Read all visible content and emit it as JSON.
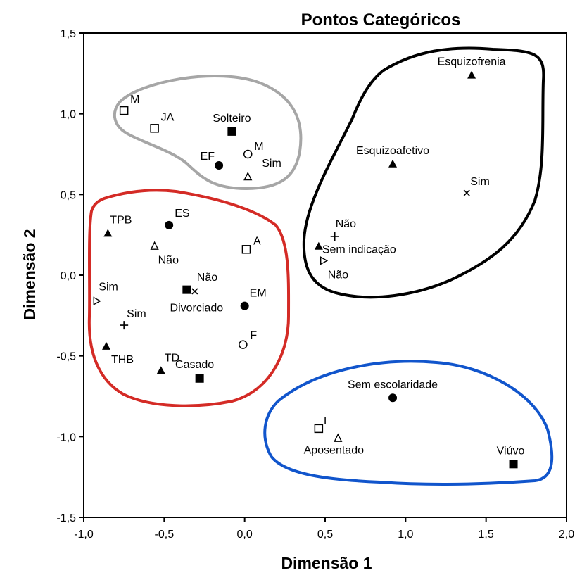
{
  "chart_data": {
    "type": "scatter",
    "title": "Pontos Categóricos",
    "xlabel": "Dimensão 1",
    "ylabel": "Dimensão 2",
    "xlim": [
      -1.0,
      2.0
    ],
    "ylim": [
      -1.5,
      1.5
    ],
    "x_ticks": [
      {
        "value": -1.0,
        "label": "-1,0"
      },
      {
        "value": -0.5,
        "label": "-0,5"
      },
      {
        "value": 0.0,
        "label": "0,0"
      },
      {
        "value": 0.5,
        "label": "0,5"
      },
      {
        "value": 1.0,
        "label": "1,0"
      },
      {
        "value": 1.5,
        "label": "1,5"
      },
      {
        "value": 2.0,
        "label": "2,0"
      }
    ],
    "y_ticks": [
      {
        "value": 1.5,
        "label": "1,5"
      },
      {
        "value": 1.0,
        "label": "1,0"
      },
      {
        "value": 0.5,
        "label": "0,5"
      },
      {
        "value": 0.0,
        "label": "0,0"
      },
      {
        "value": -0.5,
        "label": "-0,5"
      },
      {
        "value": -1.0,
        "label": "-1,0"
      },
      {
        "value": -1.5,
        "label": "-1,5"
      }
    ],
    "grid": false,
    "points": [
      {
        "label": "M",
        "x": -0.75,
        "y": 1.02,
        "marker": "open-square"
      },
      {
        "label": "JA",
        "x": -0.56,
        "y": 0.91,
        "marker": "open-square"
      },
      {
        "label": "Solteiro",
        "x": -0.08,
        "y": 0.89,
        "marker": "filled-square"
      },
      {
        "label": "M",
        "x": 0.02,
        "y": 0.75,
        "marker": "open-circle"
      },
      {
        "label": "EF",
        "x": -0.16,
        "y": 0.68,
        "marker": "filled-circle"
      },
      {
        "label": "Sim",
        "x": 0.02,
        "y": 0.61,
        "marker": "open-triangle"
      },
      {
        "label": "Esquizofrenia",
        "x": 1.41,
        "y": 1.24,
        "marker": "filled-triangle"
      },
      {
        "label": "Esquizoafetivo",
        "x": 0.92,
        "y": 0.69,
        "marker": "filled-triangle"
      },
      {
        "label": "Sim",
        "x": 1.38,
        "y": 0.51,
        "marker": "cross-x"
      },
      {
        "label": "Não",
        "x": 0.56,
        "y": 0.24,
        "marker": "plus"
      },
      {
        "label": "Sem indicação",
        "x": 0.46,
        "y": 0.18,
        "marker": "filled-triangle"
      },
      {
        "label": "Não",
        "x": 0.49,
        "y": 0.09,
        "marker": "open-tri-right"
      },
      {
        "label": "TPB",
        "x": -0.85,
        "y": 0.26,
        "marker": "filled-triangle"
      },
      {
        "label": "ES",
        "x": -0.47,
        "y": 0.31,
        "marker": "filled-circle"
      },
      {
        "label": "Não",
        "x": -0.56,
        "y": 0.18,
        "marker": "open-triangle"
      },
      {
        "label": "A",
        "x": 0.01,
        "y": 0.16,
        "marker": "open-square"
      },
      {
        "label": "Sim",
        "x": -0.92,
        "y": -0.16,
        "marker": "open-tri-right"
      },
      {
        "label": "Não",
        "x": -0.31,
        "y": -0.1,
        "marker": "cross-x"
      },
      {
        "label": "Divorciado",
        "x": -0.36,
        "y": -0.09,
        "marker": "filled-square"
      },
      {
        "label": "EM",
        "x": 0.0,
        "y": -0.19,
        "marker": "filled-circle"
      },
      {
        "label": "Sim",
        "x": -0.75,
        "y": -0.31,
        "marker": "plus"
      },
      {
        "label": "F",
        "x": -0.01,
        "y": -0.43,
        "marker": "open-circle"
      },
      {
        "label": "THB",
        "x": -0.86,
        "y": -0.44,
        "marker": "filled-triangle"
      },
      {
        "label": "TD",
        "x": -0.52,
        "y": -0.59,
        "marker": "filled-triangle"
      },
      {
        "label": "Casado",
        "x": -0.28,
        "y": -0.64,
        "marker": "filled-square"
      },
      {
        "label": "Sem escolaridade",
        "x": 0.92,
        "y": -0.76,
        "marker": "filled-circle"
      },
      {
        "label": "I",
        "x": 0.46,
        "y": -0.95,
        "marker": "open-square"
      },
      {
        "label": "Aposentado",
        "x": 0.58,
        "y": -1.01,
        "marker": "open-triangle"
      },
      {
        "label": "Viúvo",
        "x": 1.67,
        "y": -1.17,
        "marker": "filled-square"
      }
    ],
    "clusters": [
      {
        "id": "grey",
        "color": "#a6a6a6"
      },
      {
        "id": "black",
        "color": "#000000"
      },
      {
        "id": "red",
        "color": "#d42b26"
      },
      {
        "id": "blue",
        "color": "#1155cc"
      }
    ]
  }
}
